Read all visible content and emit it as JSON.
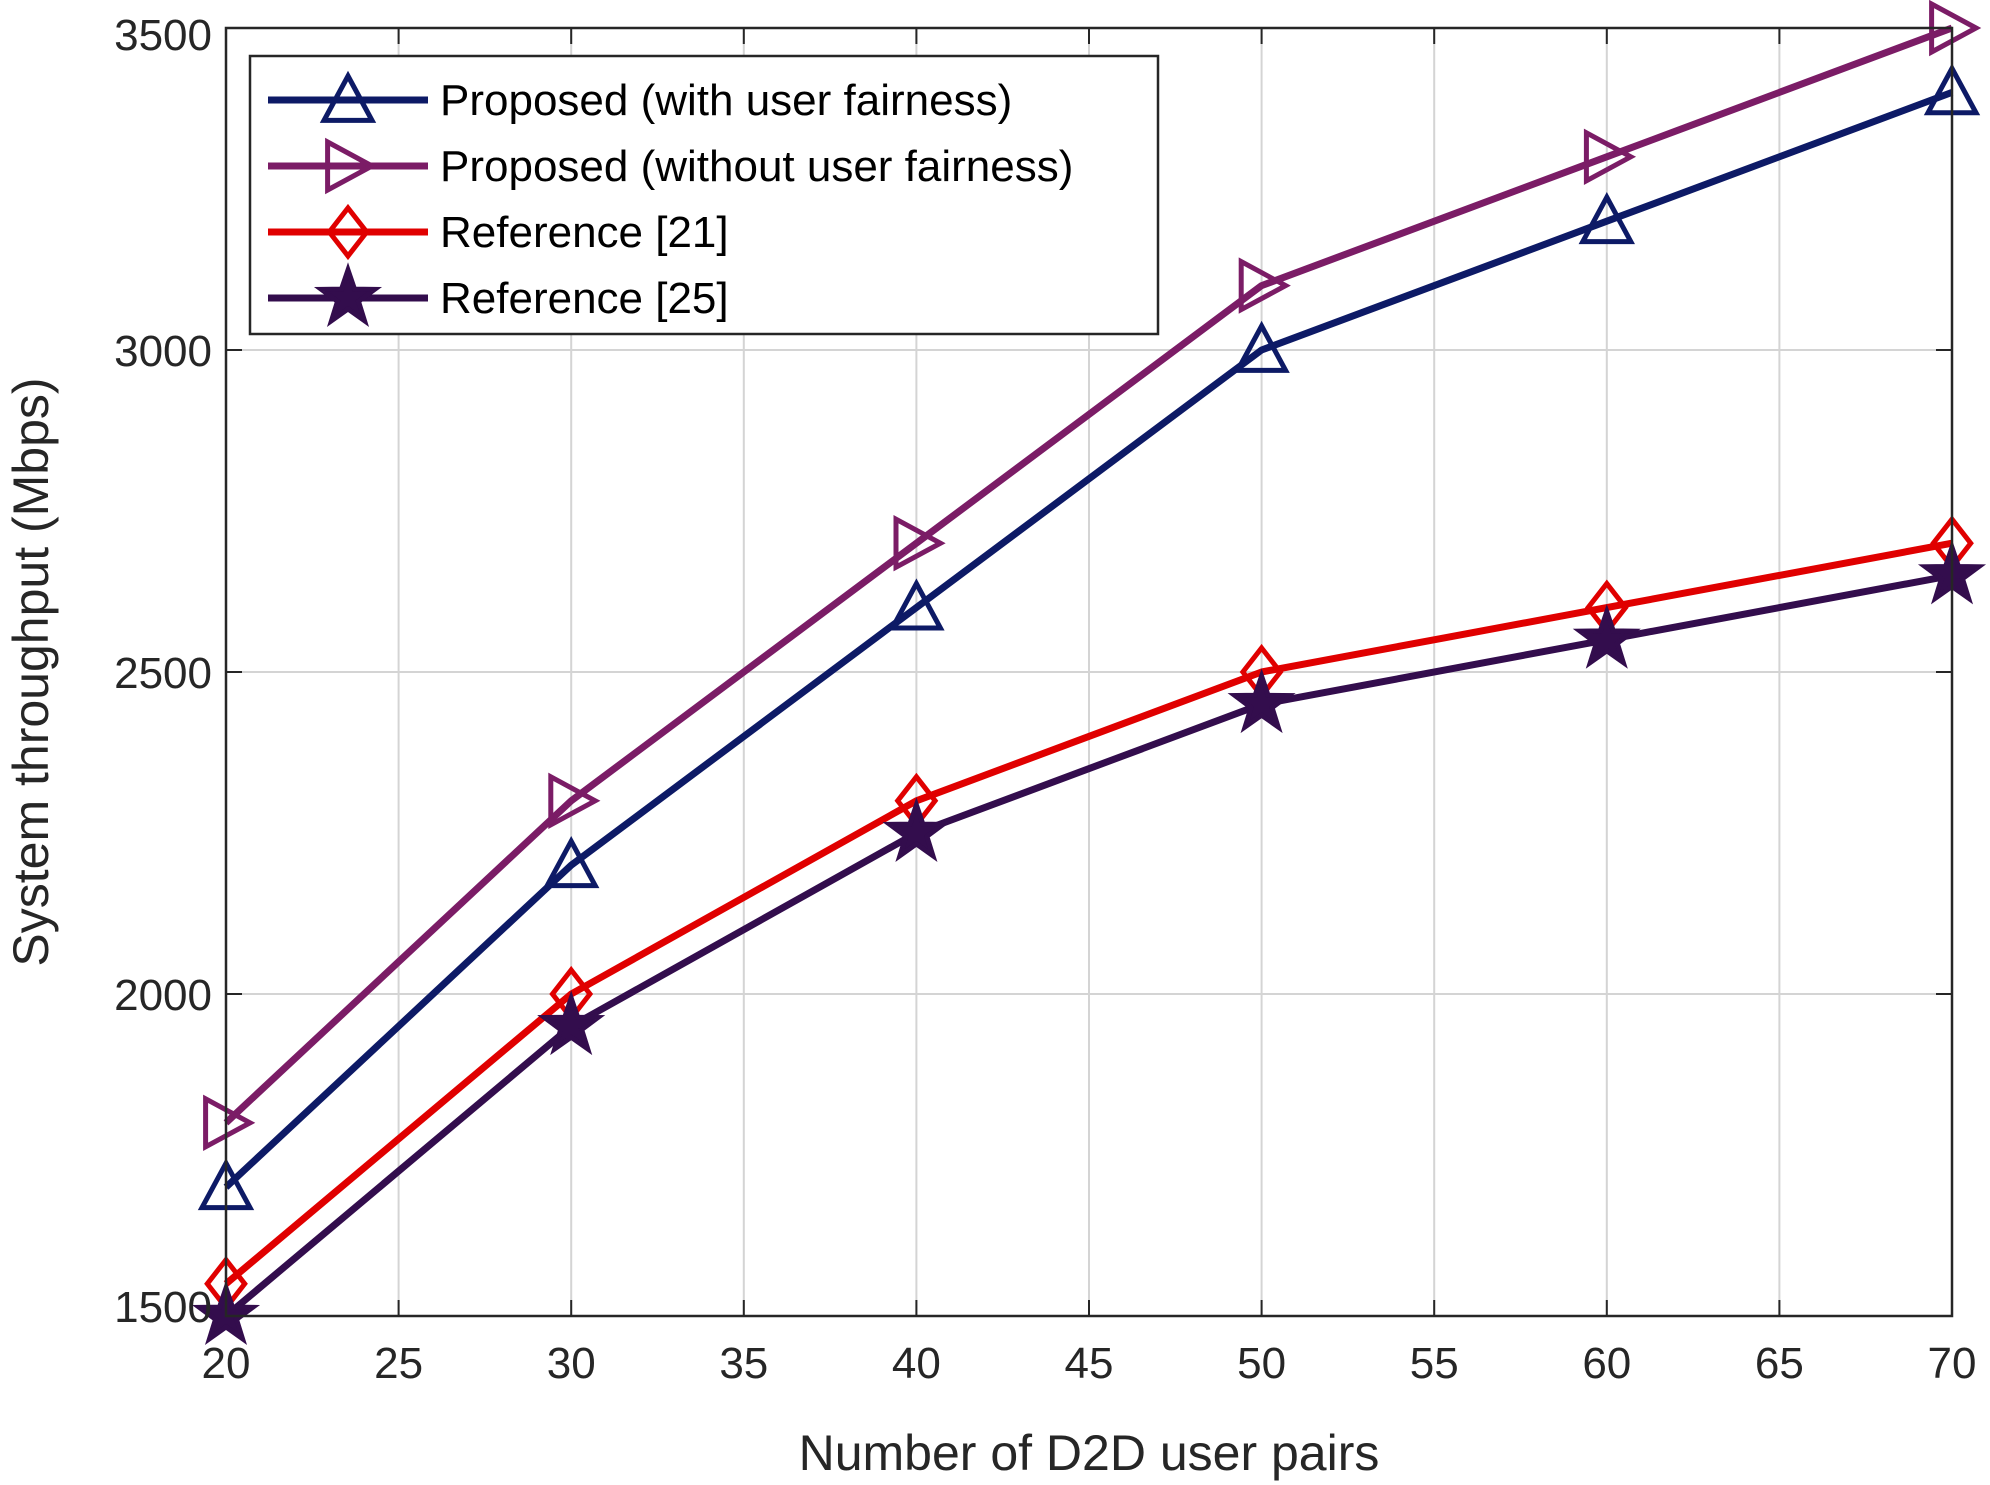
{
  "chart_data": {
    "type": "line",
    "title": "",
    "xlabel": "Number of D2D user pairs",
    "ylabel": "System throughput (Mbps)",
    "xlim": [
      20,
      70
    ],
    "ylim": [
      1500,
      3500
    ],
    "xticks": [
      20,
      25,
      30,
      35,
      40,
      45,
      50,
      55,
      60,
      65,
      70
    ],
    "yticks": [
      1500,
      2000,
      2500,
      3000,
      3500
    ],
    "grid": true,
    "legend_position": "top-left",
    "x": [
      20,
      30,
      40,
      50,
      60,
      70
    ],
    "series": [
      {
        "name": "Proposed (with user fairness)",
        "values": [
          1700,
          2200,
          2600,
          3000,
          3200,
          3400
        ],
        "color": "#0d1a66",
        "marker": "triangle-up"
      },
      {
        "name": "Proposed (without user fairness)",
        "values": [
          1800,
          2300,
          2700,
          3100,
          3300,
          3500
        ],
        "color": "#7b1c66",
        "marker": "triangle-right"
      },
      {
        "name": "Reference [21]",
        "values": [
          1550,
          2000,
          2300,
          2500,
          2600,
          2700
        ],
        "color": "#e00000",
        "marker": "diamond"
      },
      {
        "name": "Reference [25]",
        "values": [
          1500,
          1950,
          2250,
          2450,
          2550,
          2650
        ],
        "color": "#330d4d",
        "marker": "star"
      }
    ]
  }
}
